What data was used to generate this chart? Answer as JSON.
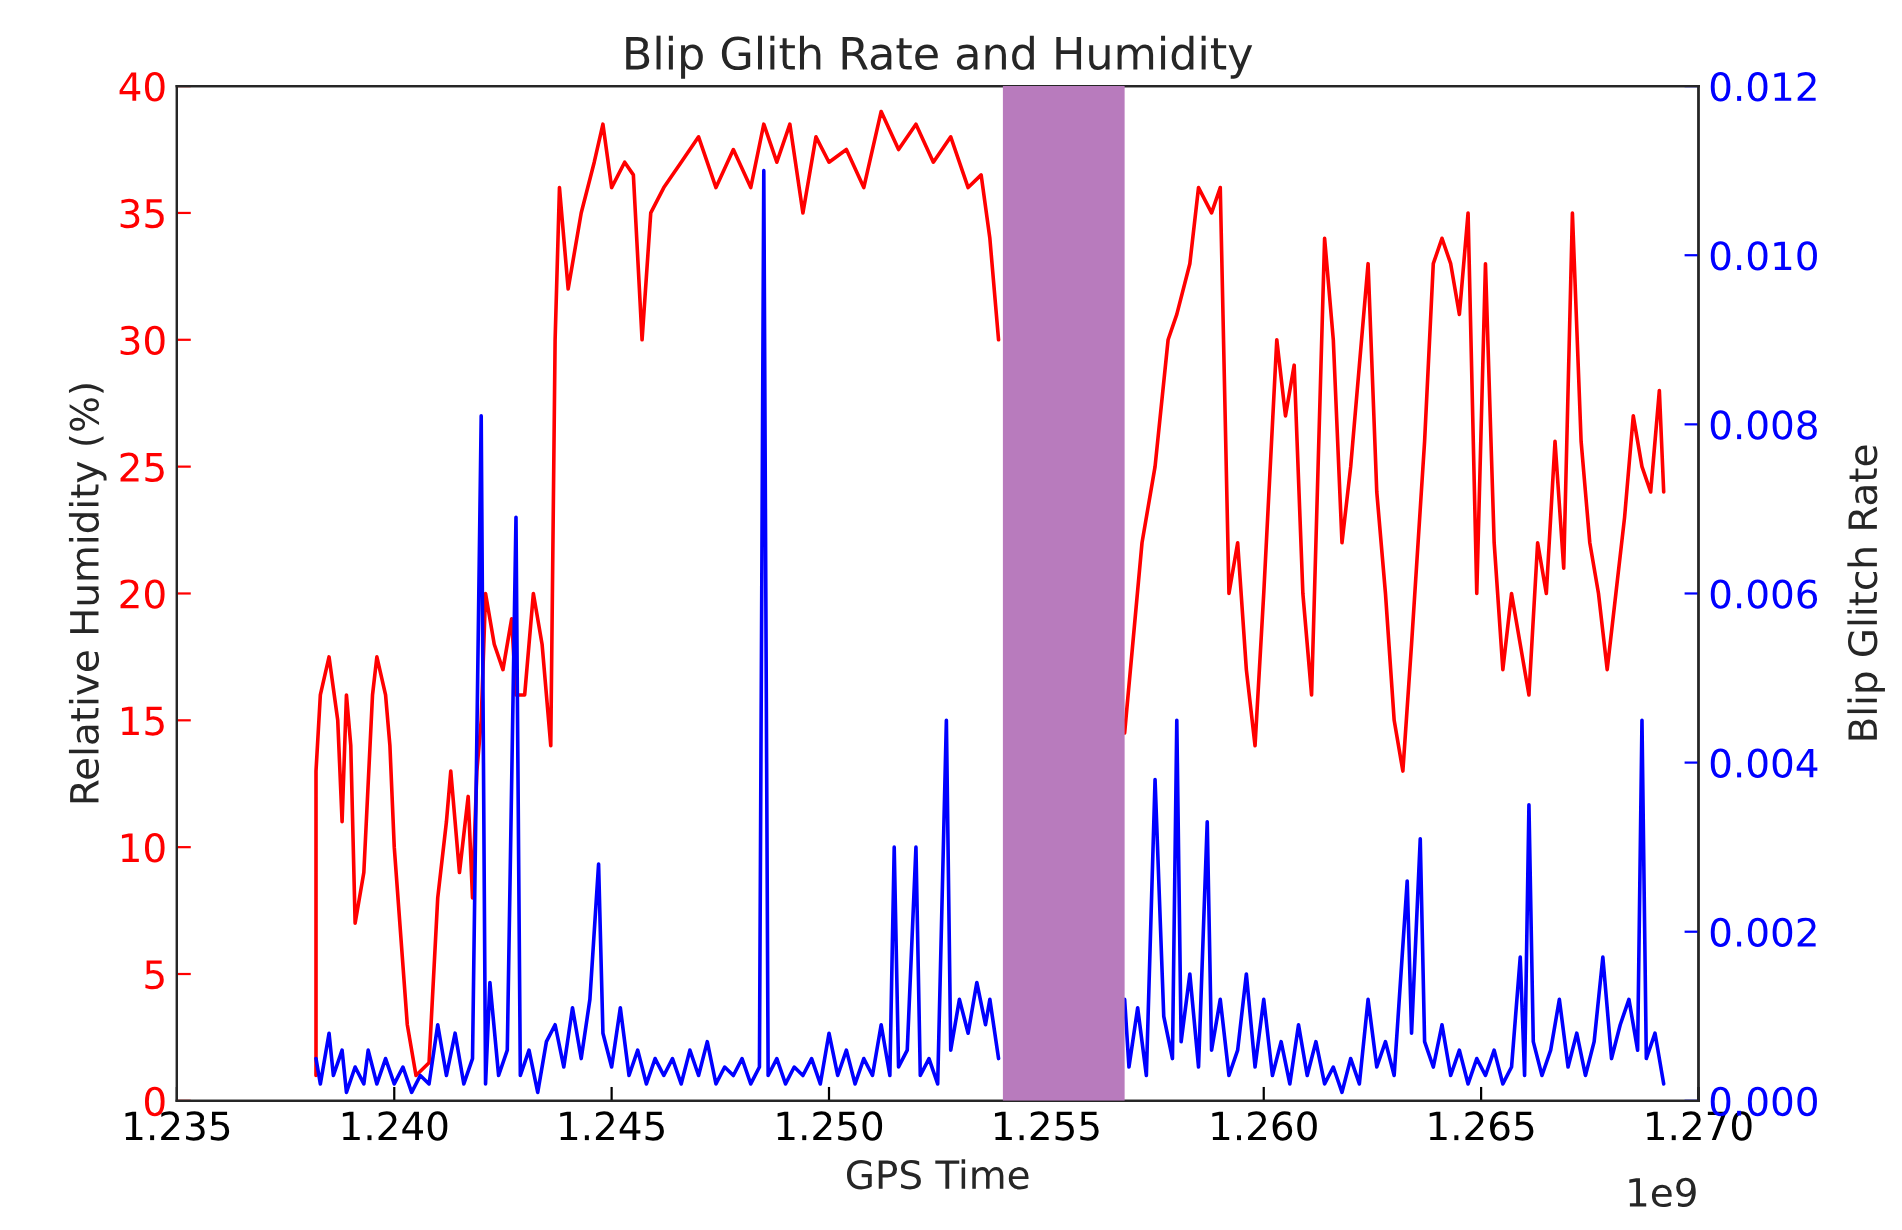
{
  "chart_data": {
    "type": "line",
    "title": "Blip Glith Rate and Humidity",
    "xlabel": "GPS Time",
    "ylabel": "Relative Humidity (%)",
    "y2label": "Blip Glitch Rate",
    "xlim": [
      1.235,
      1.27
    ],
    "xticks": [
      {
        "value": 1.235,
        "label": "1.235"
      },
      {
        "value": 1.24,
        "label": "1.240"
      },
      {
        "value": 1.245,
        "label": "1.245"
      },
      {
        "value": 1.25,
        "label": "1.250"
      },
      {
        "value": 1.255,
        "label": "1.255"
      },
      {
        "value": 1.26,
        "label": "1.260"
      },
      {
        "value": 1.265,
        "label": "1.265"
      },
      {
        "value": 1.27,
        "label": "1.270"
      }
    ],
    "ylim": [
      0,
      40
    ],
    "yticks": [
      0,
      5,
      10,
      15,
      20,
      25,
      30,
      35,
      40
    ],
    "y2lim": [
      0,
      0.012
    ],
    "y2ticks": [
      {
        "value": 0,
        "label": "0.000"
      },
      {
        "value": 0.002,
        "label": "0.002"
      },
      {
        "value": 0.004,
        "label": "0.004"
      },
      {
        "value": 0.006,
        "label": "0.006"
      },
      {
        "value": 0.008,
        "label": "0.008"
      },
      {
        "value": 0.01,
        "label": "0.010"
      },
      {
        "value": 0.012,
        "label": "0.012"
      }
    ],
    "grid": false,
    "marker": "none",
    "line_style": "solid",
    "bands": [
      {
        "axis": "x",
        "from": 1.254,
        "to": 1.2568,
        "color": "#b87bbd"
      }
    ],
    "annotations": [
      "1e9"
    ],
    "series": [
      {
        "color": "#ff0000",
        "axis": "y",
        "x": [
          1.2382,
          1.2382,
          1.2383,
          1.2385,
          1.2387,
          1.2388,
          1.2389,
          1.239,
          1.2391,
          1.2393,
          1.2395,
          1.2396,
          1.2398,
          1.2399,
          1.24,
          1.2403,
          1.2405,
          1.2408,
          1.241,
          1.2412,
          1.2413,
          1.2415,
          1.2417,
          1.2418,
          1.2419,
          1.242,
          1.2421,
          1.2423,
          1.2425,
          1.2427,
          1.2428,
          1.243,
          1.2432,
          1.2434,
          1.2436,
          1.2437,
          1.2438,
          1.244,
          1.2443,
          1.2446,
          1.2448,
          1.245,
          1.2453,
          1.2455,
          1.2457,
          1.2459,
          1.2462,
          1.2466,
          1.247,
          1.2474,
          1.2478,
          1.2482,
          1.2485,
          1.2488,
          1.2491,
          1.2494,
          1.2497,
          1.25,
          1.2504,
          1.2508,
          1.2512,
          1.2516,
          1.252,
          1.2524,
          1.2528,
          1.2532,
          1.2535,
          1.2537,
          1.2539,
          1.2554,
          1.2568,
          1.2572,
          1.2575,
          1.2578,
          1.258,
          1.2583,
          1.2585,
          1.2588,
          1.259,
          1.2592,
          1.2594,
          1.2596,
          1.2598,
          1.26,
          1.2603,
          1.2605,
          1.2607,
          1.2609,
          1.2611,
          1.2614,
          1.2616,
          1.2618,
          1.262,
          1.2622,
          1.2624,
          1.2626,
          1.2628,
          1.263,
          1.2632,
          1.2634,
          1.2637,
          1.2639,
          1.2641,
          1.2643,
          1.2645,
          1.2647,
          1.2649,
          1.2651,
          1.2653,
          1.2655,
          1.2657,
          1.2659,
          1.2661,
          1.2663,
          1.2665,
          1.2667,
          1.2669,
          1.2671,
          1.2673,
          1.2675,
          1.2677,
          1.2679,
          1.2681,
          1.2683,
          1.2685,
          1.2687,
          1.2689,
          1.2691,
          1.2692
        ],
        "values": [
          1,
          13,
          16,
          17.5,
          15,
          11,
          16,
          14,
          7,
          9,
          16,
          17.5,
          16,
          14,
          10,
          3,
          1,
          1.5,
          8,
          11,
          13,
          9,
          12,
          8,
          13,
          15,
          20,
          18,
          17,
          19,
          16,
          16,
          20,
          18,
          14,
          30,
          36,
          32,
          35,
          37,
          38.5,
          36,
          37,
          36.5,
          30,
          35,
          36,
          37,
          38,
          36,
          37.5,
          36,
          38.5,
          37,
          38.5,
          35,
          38,
          37,
          37.5,
          36,
          39,
          37.5,
          38.5,
          37,
          38,
          36,
          36.5,
          34,
          30,
          null,
          14.5,
          22,
          25,
          30,
          31,
          33,
          36,
          35,
          36,
          20,
          22,
          17,
          14,
          20,
          30,
          27,
          29,
          20,
          16,
          34,
          30,
          22,
          25,
          29,
          33,
          24,
          20,
          15,
          13,
          18,
          26,
          33,
          34,
          33,
          31,
          35,
          20,
          33,
          22,
          17,
          20,
          18,
          16,
          22,
          20,
          26,
          21,
          35,
          26,
          22,
          20,
          17,
          20,
          23,
          27,
          25,
          24,
          28,
          24
        ]
      },
      {
        "color": "#0000ff",
        "axis": "y2",
        "x": [
          1.2382,
          1.2383,
          1.2385,
          1.2386,
          1.2388,
          1.2389,
          1.2391,
          1.2393,
          1.2394,
          1.2396,
          1.2398,
          1.24,
          1.2402,
          1.2404,
          1.2406,
          1.2408,
          1.241,
          1.2412,
          1.2414,
          1.2416,
          1.2418,
          1.242,
          1.2421,
          1.2422,
          1.2424,
          1.2426,
          1.2428,
          1.2429,
          1.2431,
          1.2433,
          1.2435,
          1.2437,
          1.2439,
          1.2441,
          1.2443,
          1.2445,
          1.2447,
          1.2448,
          1.245,
          1.2452,
          1.2454,
          1.2456,
          1.2458,
          1.246,
          1.2462,
          1.2464,
          1.2466,
          1.2468,
          1.247,
          1.2472,
          1.2474,
          1.2476,
          1.2478,
          1.248,
          1.2482,
          1.2484,
          1.2485,
          1.2486,
          1.2488,
          1.249,
          1.2492,
          1.2494,
          1.2496,
          1.2498,
          1.25,
          1.2502,
          1.2504,
          1.2506,
          1.2508,
          1.251,
          1.2512,
          1.2514,
          1.2515,
          1.2516,
          1.2518,
          1.252,
          1.2521,
          1.2523,
          1.2525,
          1.2527,
          1.2528,
          1.253,
          1.2532,
          1.2534,
          1.2536,
          1.2537,
          1.2539,
          1.2554,
          1.2568,
          1.2569,
          1.2571,
          1.2573,
          1.2575,
          1.2577,
          1.2579,
          1.258,
          1.2581,
          1.2583,
          1.2585,
          1.2587,
          1.2588,
          1.259,
          1.2592,
          1.2594,
          1.2596,
          1.2598,
          1.26,
          1.2602,
          1.2604,
          1.2606,
          1.2608,
          1.261,
          1.2612,
          1.2614,
          1.2616,
          1.2618,
          1.262,
          1.2622,
          1.2624,
          1.2626,
          1.2628,
          1.263,
          1.2633,
          1.2634,
          1.2636,
          1.2637,
          1.2639,
          1.2641,
          1.2643,
          1.2645,
          1.2647,
          1.2649,
          1.2651,
          1.2653,
          1.2655,
          1.2657,
          1.2659,
          1.266,
          1.2661,
          1.2662,
          1.2664,
          1.2666,
          1.2668,
          1.267,
          1.2672,
          1.2674,
          1.2676,
          1.2678,
          1.268,
          1.2682,
          1.2684,
          1.2686,
          1.2687,
          1.2688,
          1.269,
          1.2692
        ],
        "values": [
          0.0005,
          0.0002,
          0.0008,
          0.0003,
          0.0006,
          0.0001,
          0.0004,
          0.0002,
          0.0006,
          0.0002,
          0.0005,
          0.0002,
          0.0004,
          0.0001,
          0.0003,
          0.0002,
          0.0009,
          0.0003,
          0.0008,
          0.0002,
          0.0005,
          0.0081,
          0.0002,
          0.0014,
          0.0003,
          0.0006,
          0.0069,
          0.0003,
          0.0006,
          0.0001,
          0.0007,
          0.0009,
          0.0004,
          0.0011,
          0.0005,
          0.0012,
          0.0028,
          0.0008,
          0.0004,
          0.0011,
          0.0003,
          0.0006,
          0.0002,
          0.0005,
          0.0003,
          0.0005,
          0.0002,
          0.0006,
          0.0003,
          0.0007,
          0.0002,
          0.0004,
          0.0003,
          0.0005,
          0.0002,
          0.0004,
          0.011,
          0.0003,
          0.0005,
          0.0002,
          0.0004,
          0.0003,
          0.0005,
          0.0002,
          0.0008,
          0.0003,
          0.0006,
          0.0002,
          0.0005,
          0.0003,
          0.0009,
          0.0003,
          0.003,
          0.0004,
          0.0006,
          0.003,
          0.0003,
          0.0005,
          0.0002,
          0.0045,
          0.0006,
          0.0012,
          0.0008,
          0.0014,
          0.0009,
          0.0012,
          0.0005,
          null,
          0.0012,
          0.0004,
          0.0011,
          0.0003,
          0.0038,
          0.001,
          0.0005,
          0.0045,
          0.0007,
          0.0015,
          0.0004,
          0.0033,
          0.0006,
          0.0012,
          0.0003,
          0.0006,
          0.0015,
          0.0004,
          0.0012,
          0.0003,
          0.0007,
          0.0002,
          0.0009,
          0.0003,
          0.0007,
          0.0002,
          0.0004,
          0.0001,
          0.0005,
          0.0002,
          0.0012,
          0.0004,
          0.0007,
          0.0003,
          0.0026,
          0.0008,
          0.0031,
          0.0007,
          0.0004,
          0.0009,
          0.0003,
          0.0006,
          0.0002,
          0.0005,
          0.0003,
          0.0006,
          0.0002,
          0.0004,
          0.0017,
          0.0003,
          0.0035,
          0.0007,
          0.0003,
          0.0006,
          0.0012,
          0.0004,
          0.0008,
          0.0003,
          0.0007,
          0.0017,
          0.0005,
          0.0009,
          0.0012,
          0.0006,
          0.0045,
          0.0005,
          0.0008,
          0.0002
        ]
      }
    ]
  }
}
